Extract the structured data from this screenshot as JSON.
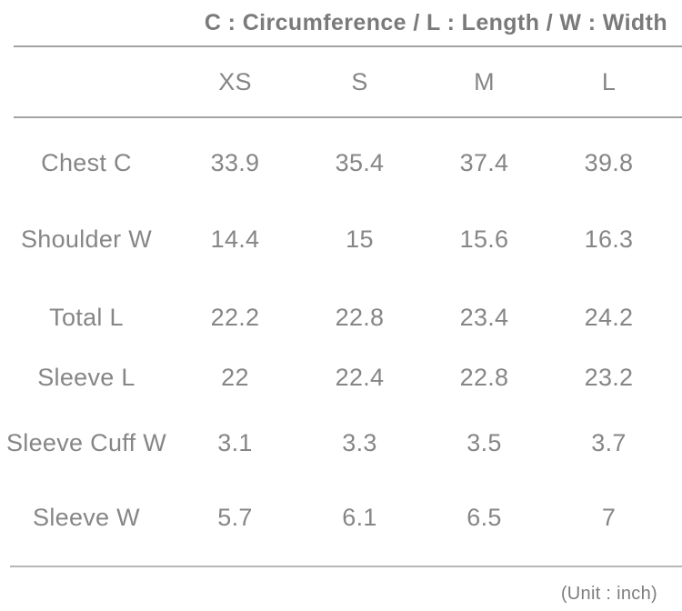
{
  "chart_data": {
    "type": "table",
    "title": "C : Circumference / L : Length / W : Width",
    "columns": [
      "XS",
      "S",
      "M",
      "L"
    ],
    "rows": [
      {
        "label": "Chest C",
        "values": [
          "33.9",
          "35.4",
          "37.4",
          "39.8"
        ]
      },
      {
        "label": "Shoulder W",
        "values": [
          "14.4",
          "15",
          "15.6",
          "16.3"
        ]
      },
      {
        "label": "Total L",
        "values": [
          "22.2",
          "22.8",
          "23.4",
          "24.2"
        ]
      },
      {
        "label": "Sleeve L",
        "values": [
          "22",
          "22.4",
          "22.8",
          "23.2"
        ]
      },
      {
        "label": "Sleeve Cuff W",
        "values": [
          "3.1",
          "3.3",
          "3.5",
          "3.7"
        ]
      },
      {
        "label": "Sleeve W",
        "values": [
          "5.7",
          "6.1",
          "6.5",
          "7"
        ]
      }
    ],
    "note": "(Unit : inch)",
    "layout": {
      "legend_position": "top-right",
      "grid": "horizontal-rules-only"
    }
  },
  "colors": {
    "background": "#ffffff",
    "title_text": "#7a7a7a",
    "body_text": "#868686",
    "rule": "#a3a3a3",
    "rule_light": "#b6b6b6"
  }
}
